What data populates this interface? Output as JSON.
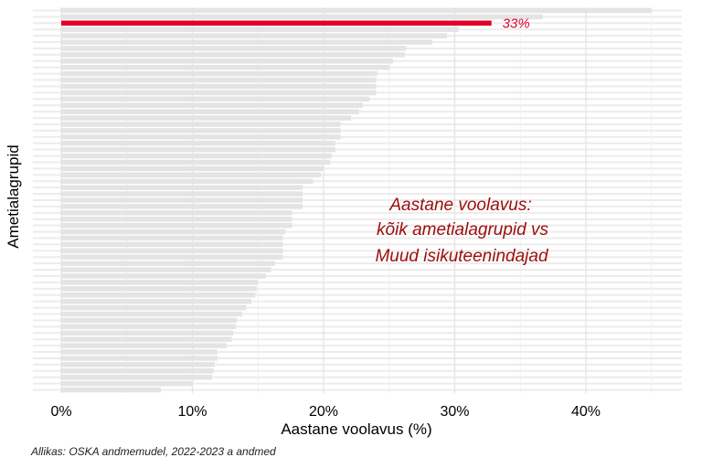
{
  "chart_data": {
    "type": "bar",
    "orientation": "horizontal",
    "xlabel": "Aastane voolavus (%)",
    "ylabel": "Ametialagrupid",
    "xlim": [
      0,
      0.47
    ],
    "x_ticks": [
      0,
      0.1,
      0.2,
      0.3,
      0.4
    ],
    "x_tick_labels": [
      "0%",
      "10%",
      "20%",
      "30%",
      "40%"
    ],
    "grid": true,
    "values": [
      0.45,
      0.367,
      0.328,
      0.303,
      0.294,
      0.283,
      0.263,
      0.262,
      0.253,
      0.25,
      0.241,
      0.24,
      0.24,
      0.24,
      0.235,
      0.23,
      0.227,
      0.221,
      0.213,
      0.213,
      0.213,
      0.209,
      0.209,
      0.206,
      0.205,
      0.2,
      0.198,
      0.192,
      0.184,
      0.184,
      0.184,
      0.184,
      0.176,
      0.176,
      0.176,
      0.171,
      0.169,
      0.169,
      0.169,
      0.169,
      0.163,
      0.16,
      0.156,
      0.15,
      0.149,
      0.148,
      0.145,
      0.141,
      0.138,
      0.134,
      0.133,
      0.131,
      0.13,
      0.126,
      0.119,
      0.119,
      0.117,
      0.116,
      0.115,
      0.1,
      0.076
    ],
    "highlight": {
      "index": 2,
      "value": 0.328,
      "label": "33%",
      "color": "#e0002a"
    },
    "bar_color": "#e4e4e4",
    "annotation": [
      "Aastane voolavus:",
      "kõik ametialagrupid vs",
      "Muud isikuteenindajad"
    ],
    "annotation_color": "#9e0c0c"
  },
  "caption": "Allikas: OSKA andmemudel, 2022-2023 a andmed"
}
